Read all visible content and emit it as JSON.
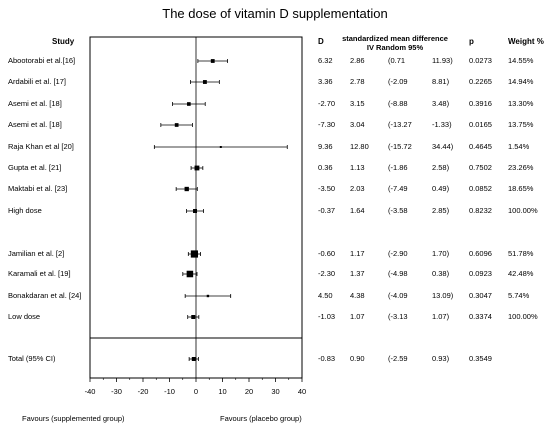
{
  "chart_data": {
    "type": "forest",
    "title": "The dose of vitamin D supplementation",
    "headers": {
      "study": "Study",
      "d": "D",
      "smd": "standardized mean difference",
      "model": "IV Random 95%",
      "p": "p",
      "weight": "Weight %"
    },
    "rows": [
      {
        "study": "Abootorabi et al.[16]",
        "d": "6.32",
        "se": "2.86",
        "ci_low": "(0.71",
        "ci_high": "11.93)",
        "p": "0.0273",
        "weight": "14.55%",
        "est": 6.32,
        "lo": 0.71,
        "hi": 11.93,
        "w": 14.55,
        "summary": false
      },
      {
        "study": "Ardabili et al. [17]",
        "d": "3.36",
        "se": "2.78",
        "ci_low": "(-2.09",
        "ci_high": "8.81)",
        "p": "0.2265",
        "weight": "14.94%",
        "est": 3.36,
        "lo": -2.09,
        "hi": 8.81,
        "w": 14.94,
        "summary": false
      },
      {
        "study": "Asemi et al. [18]",
        "d": "-2.70",
        "se": "3.15",
        "ci_low": "(-8.88",
        "ci_high": "3.48)",
        "p": "0.3916",
        "weight": "13.30%",
        "est": -2.7,
        "lo": -8.88,
        "hi": 3.48,
        "w": 13.3,
        "summary": false
      },
      {
        "study": "Asemi et al. [18]",
        "d": "-7.30",
        "se": "3.04",
        "ci_low": "(-13.27",
        "ci_high": "-1.33)",
        "p": "0.0165",
        "weight": "13.75%",
        "est": -7.3,
        "lo": -13.27,
        "hi": -1.33,
        "w": 13.75,
        "summary": false
      },
      {
        "study": "Raja Khan et al [20]",
        "d": "9.36",
        "se": "12.80",
        "ci_low": "(-15.72",
        "ci_high": "34.44)",
        "p": "0.4645",
        "weight": "1.54%",
        "est": 9.36,
        "lo": -15.72,
        "hi": 34.44,
        "w": 1.54,
        "summary": false
      },
      {
        "study": "Gupta et al. [21]",
        "d": "0.36",
        "se": "1.13",
        "ci_low": "(-1.86",
        "ci_high": "2.58)",
        "p": "0.7502",
        "weight": "23.26%",
        "est": 0.36,
        "lo": -1.86,
        "hi": 2.58,
        "w": 23.26,
        "summary": false
      },
      {
        "study": "Maktabi et al. [23]",
        "d": "-3.50",
        "se": "2.03",
        "ci_low": "(-7.49",
        "ci_high": "0.49)",
        "p": "0.0852",
        "weight": "18.65%",
        "est": -3.5,
        "lo": -7.49,
        "hi": 0.49,
        "w": 18.65,
        "summary": false
      },
      {
        "study": "High dose",
        "d": "-0.37",
        "se": "1.64",
        "ci_low": "(-3.58",
        "ci_high": "2.85)",
        "p": "0.8232",
        "weight": "100.00%",
        "est": -0.37,
        "lo": -3.58,
        "hi": 2.85,
        "w": 100,
        "summary": true
      },
      {
        "study": "Jamilian et al. [2]",
        "d": "-0.60",
        "se": "1.17",
        "ci_low": "(-2.90",
        "ci_high": "1.70)",
        "p": "0.6096",
        "weight": "51.78%",
        "est": -0.6,
        "lo": -2.9,
        "hi": 1.7,
        "w": 51.78,
        "summary": false
      },
      {
        "study": "Karamali et al. [19]",
        "d": "-2.30",
        "se": "1.37",
        "ci_low": "(-4.98",
        "ci_high": "0.38)",
        "p": "0.0923",
        "weight": "42.48%",
        "est": -2.3,
        "lo": -4.98,
        "hi": 0.38,
        "w": 42.48,
        "summary": false
      },
      {
        "study": "Bonakdaran et al. [24]",
        "d": "4.50",
        "se": "4.38",
        "ci_low": "(-4.09",
        "ci_high": "13.09)",
        "p": "0.3047",
        "weight": "5.74%",
        "est": 4.5,
        "lo": -4.09,
        "hi": 13.09,
        "w": 5.74,
        "summary": false
      },
      {
        "study": "Low dose",
        "d": "-1.03",
        "se": "1.07",
        "ci_low": "(-3.13",
        "ci_high": "1.07)",
        "p": "0.3374",
        "weight": "100.00%",
        "est": -1.03,
        "lo": -3.13,
        "hi": 1.07,
        "w": 100,
        "summary": true
      },
      {
        "study": "Total (95% CI)",
        "d": "-0.83",
        "se": "0.90",
        "ci_low": "(-2.59",
        "ci_high": "0.93)",
        "p": "0.3549",
        "weight": "",
        "est": -0.83,
        "lo": -2.59,
        "hi": 0.93,
        "w": 100,
        "summary": true
      }
    ],
    "x_ticks": [
      -40,
      -30,
      -20,
      -10,
      0,
      10,
      20,
      30,
      40
    ],
    "xlim": [
      -40,
      40
    ],
    "x_tick_labels": [
      "-40",
      "-30",
      "-20",
      "-10",
      "0",
      "10",
      "20",
      "30",
      "40"
    ],
    "footer_left": "Favours (supplemented group)",
    "footer_right": "Favours (placebo group)"
  }
}
